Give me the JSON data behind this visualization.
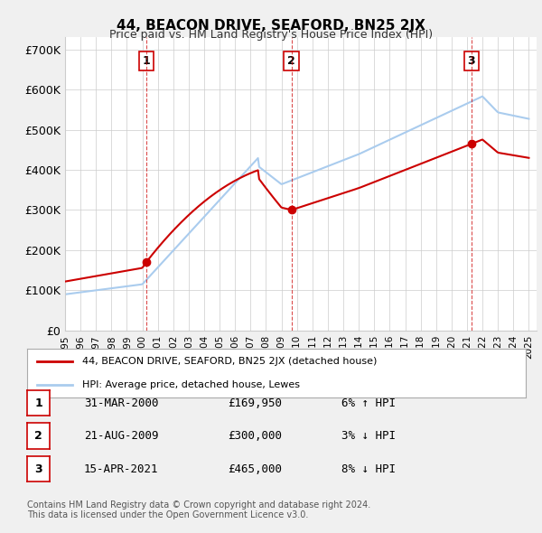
{
  "title": "44, BEACON DRIVE, SEAFORD, BN25 2JX",
  "subtitle": "Price paid vs. HM Land Registry's House Price Index (HPI)",
  "ylabel_ticks": [
    "£0",
    "£100K",
    "£200K",
    "£300K",
    "£400K",
    "£500K",
    "£600K",
    "£700K"
  ],
  "ytick_values": [
    0,
    100000,
    200000,
    300000,
    400000,
    500000,
    600000,
    700000
  ],
  "ylim": [
    0,
    730000
  ],
  "xlim_start": 1995.0,
  "xlim_end": 2025.5,
  "background_color": "#f0f0f0",
  "plot_bg_color": "#ffffff",
  "red_line_color": "#cc0000",
  "blue_line_color": "#aaccee",
  "dashed_color": "#cc0000",
  "grid_color": "#cccccc",
  "sale_points": [
    {
      "year": 2000.25,
      "price": 169950,
      "label": "1"
    },
    {
      "year": 2009.64,
      "price": 300000,
      "label": "2"
    },
    {
      "year": 2021.29,
      "price": 465000,
      "label": "3"
    }
  ],
  "legend_entries": [
    "44, BEACON DRIVE, SEAFORD, BN25 2JX (detached house)",
    "HPI: Average price, detached house, Lewes"
  ],
  "table_rows": [
    {
      "num": "1",
      "date": "31-MAR-2000",
      "price": "£169,950",
      "hpi": "6% ↑ HPI"
    },
    {
      "num": "2",
      "date": "21-AUG-2009",
      "price": "£300,000",
      "hpi": "3% ↓ HPI"
    },
    {
      "num": "3",
      "date": "15-APR-2021",
      "price": "£465,000",
      "hpi": "8% ↓ HPI"
    }
  ],
  "footnote": "Contains HM Land Registry data © Crown copyright and database right 2024.\nThis data is licensed under the Open Government Licence v3.0.",
  "xtick_years": [
    1995,
    1996,
    1997,
    1998,
    1999,
    2000,
    2001,
    2002,
    2003,
    2004,
    2005,
    2006,
    2007,
    2008,
    2009,
    2010,
    2011,
    2012,
    2013,
    2014,
    2015,
    2016,
    2017,
    2018,
    2019,
    2020,
    2021,
    2022,
    2023,
    2024,
    2025
  ]
}
